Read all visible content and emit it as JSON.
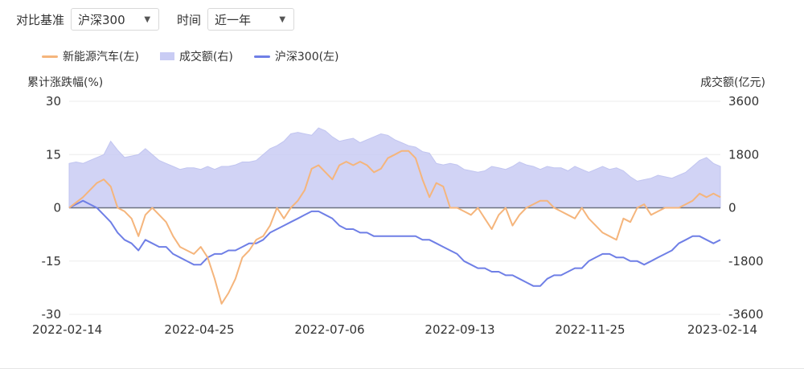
{
  "controls": {
    "benchmark_label": "对比基准",
    "benchmark_value": "沪深300",
    "time_label": "时间",
    "time_value": "近一年"
  },
  "colors": {
    "nev": "#f5b57c",
    "volume_fill": "#c9ccf4",
    "volume_edge": "#b7bbee",
    "hs300": "#6f7fe6",
    "zero_line": "#6b7280",
    "grid": "#ececec"
  },
  "chart_data": {
    "type": "line",
    "left_axis_title": "累计涨跌幅(%)",
    "right_axis_title": "成交额(亿元)",
    "left_ticks": [
      "30",
      "15",
      "0",
      "-15",
      "-30"
    ],
    "right_ticks": [
      "3600",
      "1800",
      "0",
      "-1800",
      "-3600"
    ],
    "x_ticks": [
      "2022-02-14",
      "2022-04-25",
      "2022-07-06",
      "2022-09-13",
      "2022-11-25",
      "2023-02-14"
    ],
    "ylim_left": [
      -30,
      30
    ],
    "ylim_right": [
      -3600,
      3600
    ],
    "series": [
      {
        "name": "新能源汽车(左)",
        "kind": "line",
        "values": [
          0,
          1.5,
          3,
          5,
          7,
          8,
          6,
          0,
          -1,
          -3,
          -8,
          -2,
          0,
          -2,
          -4,
          -8,
          -11,
          -12,
          -13,
          -11,
          -14,
          -20,
          -27,
          -24,
          -20,
          -14,
          -12,
          -9,
          -8,
          -5,
          0,
          -3,
          0,
          2,
          5,
          11,
          12,
          10,
          8,
          12,
          13,
          12,
          13,
          12,
          10,
          11,
          14,
          15,
          16,
          16,
          14,
          8,
          3,
          7,
          6,
          0,
          0,
          -1,
          -2,
          0,
          -3,
          -6,
          -2,
          0,
          -5,
          -2,
          0,
          1,
          2,
          2,
          0,
          -1,
          -2,
          -3,
          0,
          -3,
          -5,
          -7,
          -8,
          -9,
          -3,
          -4,
          0,
          1,
          -2,
          -1,
          0,
          0,
          0,
          1,
          2,
          4,
          3,
          4,
          3
        ]
      },
      {
        "name": "成交额(右)",
        "kind": "area",
        "values": [
          1500,
          1550,
          1500,
          1600,
          1700,
          1800,
          2250,
          1950,
          1700,
          1750,
          1800,
          2000,
          1800,
          1600,
          1500,
          1400,
          1300,
          1350,
          1350,
          1300,
          1400,
          1300,
          1400,
          1400,
          1450,
          1550,
          1550,
          1600,
          1800,
          2000,
          2100,
          2250,
          2500,
          2550,
          2500,
          2450,
          2700,
          2600,
          2400,
          2250,
          2300,
          2350,
          2200,
          2300,
          2400,
          2500,
          2450,
          2300,
          2200,
          2100,
          2050,
          1900,
          1850,
          1500,
          1450,
          1500,
          1450,
          1300,
          1250,
          1200,
          1250,
          1400,
          1350,
          1300,
          1400,
          1550,
          1450,
          1400,
          1300,
          1400,
          1350,
          1350,
          1250,
          1400,
          1300,
          1200,
          1300,
          1400,
          1300,
          1350,
          1250,
          1050,
          900,
          950,
          1000,
          1100,
          1050,
          1000,
          1100,
          1200,
          1400,
          1600,
          1700,
          1500,
          1400
        ]
      },
      {
        "name": "沪深300(左)",
        "kind": "line",
        "values": [
          0,
          1,
          2,
          1,
          0,
          -2,
          -4,
          -7,
          -9,
          -10,
          -12,
          -9,
          -10,
          -11,
          -11,
          -13,
          -14,
          -15,
          -16,
          -16,
          -14,
          -13,
          -13,
          -12,
          -12,
          -11,
          -10,
          -10,
          -9,
          -7,
          -6,
          -5,
          -4,
          -3,
          -2,
          -1,
          -1,
          -2,
          -3,
          -5,
          -6,
          -6,
          -7,
          -7,
          -8,
          -8,
          -8,
          -8,
          -8,
          -8,
          -8,
          -9,
          -9,
          -10,
          -11,
          -12,
          -13,
          -15,
          -16,
          -17,
          -17,
          -18,
          -18,
          -19,
          -19,
          -20,
          -21,
          -22,
          -22,
          -20,
          -19,
          -19,
          -18,
          -17,
          -17,
          -15,
          -14,
          -13,
          -13,
          -14,
          -14,
          -15,
          -15,
          -16,
          -15,
          -14,
          -13,
          -12,
          -10,
          -9,
          -8,
          -8,
          -9,
          -10,
          -9
        ]
      }
    ]
  }
}
